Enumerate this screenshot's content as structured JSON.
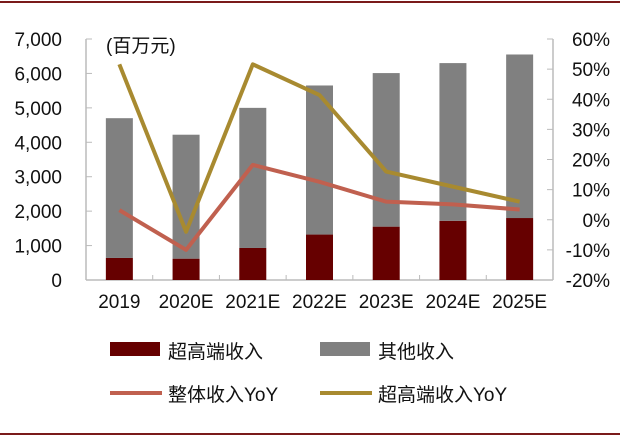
{
  "chart_data": {
    "type": "bar",
    "unit_label": "(百万元)",
    "categories": [
      "2019",
      "2020E",
      "2021E",
      "2022E",
      "2023E",
      "2024E",
      "2025E"
    ],
    "stacked": true,
    "left_axis": {
      "ylim": [
        0,
        7000
      ],
      "ticks": [
        "0",
        "1,000",
        "2,000",
        "3,000",
        "4,000",
        "5,000",
        "6,000",
        "7,000"
      ]
    },
    "right_axis": {
      "ylim": [
        -20,
        60
      ],
      "ticks": [
        "-20%",
        "-10%",
        "0%",
        "10%",
        "20%",
        "30%",
        "40%",
        "50%",
        "60%"
      ]
    },
    "series": [
      {
        "name": "超高端收入",
        "type": "bar",
        "axis": "left",
        "color": "#660000",
        "values": [
          640,
          620,
          930,
          1320,
          1550,
          1720,
          1800
        ]
      },
      {
        "name": "其他收入",
        "type": "bar",
        "axis": "left",
        "color": "#808080",
        "values": [
          4060,
          3600,
          4070,
          4330,
          4460,
          4580,
          4750
        ]
      },
      {
        "name": "整体收入YoY",
        "type": "line",
        "axis": "right",
        "color": "#c0604f",
        "values": [
          3.2,
          -10,
          18.2,
          12.6,
          6,
          5.1,
          3.4
        ]
      },
      {
        "name": "超高端收入YoY",
        "type": "line",
        "axis": "right",
        "color": "#a88a30",
        "values": [
          51.6,
          -4,
          51.6,
          41.4,
          16,
          11,
          6
        ]
      }
    ],
    "legend": "bottom",
    "grid": false
  }
}
